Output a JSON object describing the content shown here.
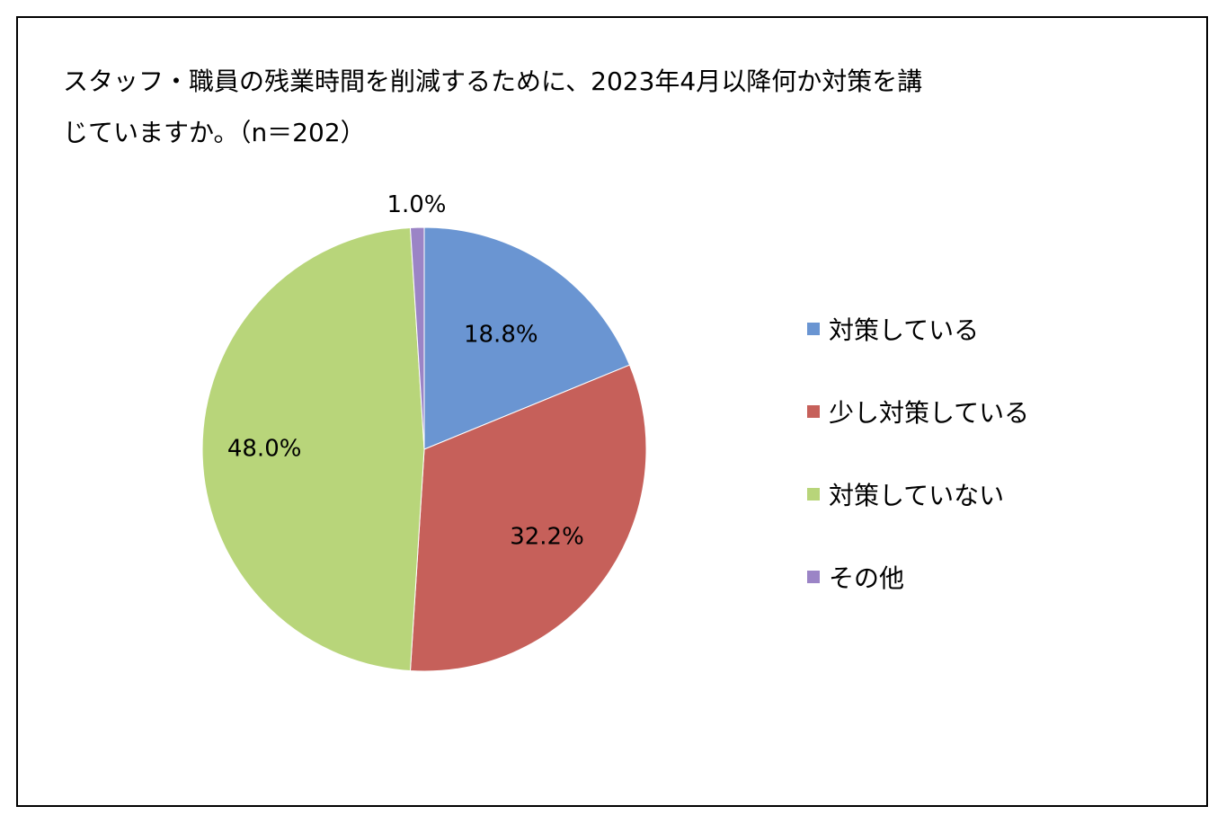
{
  "title": {
    "line1": "スタッフ・職員の残業時間を削減するために、2023年4月以降何か対策を講",
    "line2": "じていますか。（n＝202）"
  },
  "chart_data": {
    "type": "pie",
    "title": "スタッフ・職員の残業時間を削減するために、2023年4月以降何か対策を講じていますか。（n＝202）",
    "categories": [
      "対策している",
      "少し対策している",
      "対策していない",
      "その他"
    ],
    "values": [
      18.8,
      32.2,
      48.0,
      1.0
    ],
    "data_labels": [
      "18.8%",
      "32.2%",
      "48.0%",
      "1.0%"
    ],
    "colors": [
      "#6A95D2",
      "#C6605A",
      "#B8D57A",
      "#9B84C6"
    ],
    "legend_position": "right"
  }
}
